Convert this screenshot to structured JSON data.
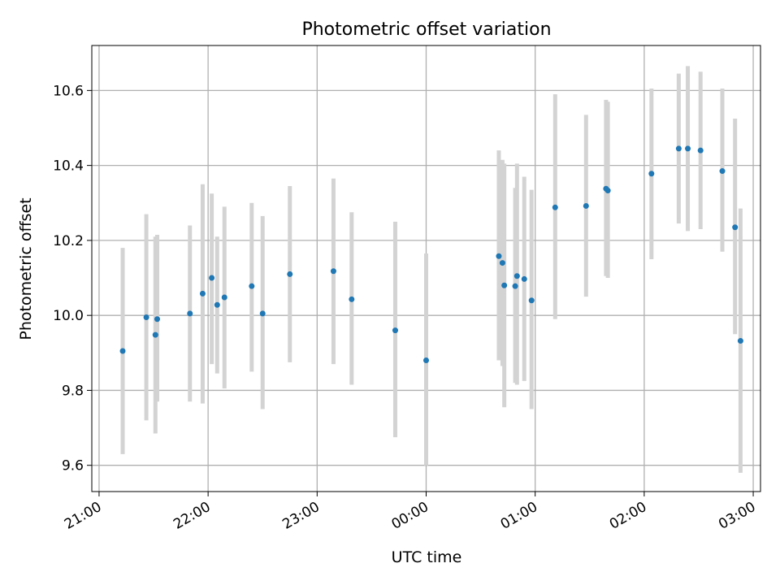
{
  "chart_data": {
    "type": "scatter",
    "title": "Photometric offset variation",
    "xlabel": "UTC time",
    "ylabel": "Photometric offset",
    "grid": true,
    "x_range_minutes_after_21_00": [
      -4,
      364
    ],
    "ylim": [
      9.53,
      10.72
    ],
    "x_tick_labels": [
      "21:00",
      "22:00",
      "23:00",
      "00:00",
      "01:00",
      "02:00",
      "03:00"
    ],
    "y_tick_values": [
      9.6,
      9.8,
      10.0,
      10.2,
      10.4,
      10.6
    ],
    "y_tick_labels": [
      "9.6",
      "9.8",
      "10.0",
      "10.2",
      "10.4",
      "10.6"
    ],
    "colors": {
      "point": "#1f77b4",
      "errorbar": "#d3d3d3",
      "grid": "#b0b0b0"
    },
    "points": [
      {
        "t": "21:13",
        "y": 9.905,
        "lo": 9.63,
        "hi": 10.18
      },
      {
        "t": "21:26",
        "y": 9.995,
        "lo": 9.72,
        "hi": 10.27
      },
      {
        "t": "21:31",
        "y": 9.948,
        "lo": 9.685,
        "hi": 10.21
      },
      {
        "t": "21:32",
        "y": 9.99,
        "lo": 9.77,
        "hi": 10.215
      },
      {
        "t": "21:50",
        "y": 10.005,
        "lo": 9.77,
        "hi": 10.24
      },
      {
        "t": "21:57",
        "y": 10.058,
        "lo": 9.765,
        "hi": 10.35
      },
      {
        "t": "22:02",
        "y": 10.1,
        "lo": 9.87,
        "hi": 10.325
      },
      {
        "t": "22:05",
        "y": 10.028,
        "lo": 9.845,
        "hi": 10.21
      },
      {
        "t": "22:09",
        "y": 10.048,
        "lo": 9.805,
        "hi": 10.29
      },
      {
        "t": "22:24",
        "y": 10.078,
        "lo": 9.85,
        "hi": 10.3
      },
      {
        "t": "22:30",
        "y": 10.005,
        "lo": 9.75,
        "hi": 10.265
      },
      {
        "t": "22:45",
        "y": 10.11,
        "lo": 9.875,
        "hi": 10.345
      },
      {
        "t": "23:09",
        "y": 10.118,
        "lo": 9.87,
        "hi": 10.365
      },
      {
        "t": "23:19",
        "y": 10.043,
        "lo": 9.815,
        "hi": 10.275
      },
      {
        "t": "23:43",
        "y": 9.96,
        "lo": 9.675,
        "hi": 10.25
      },
      {
        "t": "00:00",
        "y": 9.88,
        "lo": 9.6,
        "hi": 10.165
      },
      {
        "t": "00:40",
        "y": 10.158,
        "lo": 9.88,
        "hi": 10.44
      },
      {
        "t": "00:42",
        "y": 10.14,
        "lo": 9.865,
        "hi": 10.415
      },
      {
        "t": "00:43",
        "y": 10.08,
        "lo": 9.755,
        "hi": 10.405
      },
      {
        "t": "00:49",
        "y": 10.078,
        "lo": 9.82,
        "hi": 10.34
      },
      {
        "t": "00:50",
        "y": 10.105,
        "lo": 9.815,
        "hi": 10.405
      },
      {
        "t": "00:54",
        "y": 10.097,
        "lo": 9.825,
        "hi": 10.37
      },
      {
        "t": "00:58",
        "y": 10.04,
        "lo": 9.75,
        "hi": 10.335
      },
      {
        "t": "01:11",
        "y": 10.288,
        "lo": 9.99,
        "hi": 10.59
      },
      {
        "t": "01:28",
        "y": 10.292,
        "lo": 10.05,
        "hi": 10.535
      },
      {
        "t": "01:39",
        "y": 10.338,
        "lo": 10.105,
        "hi": 10.575
      },
      {
        "t": "01:40",
        "y": 10.333,
        "lo": 10.1,
        "hi": 10.57
      },
      {
        "t": "02:04",
        "y": 10.378,
        "lo": 10.15,
        "hi": 10.605
      },
      {
        "t": "02:19",
        "y": 10.445,
        "lo": 10.245,
        "hi": 10.645
      },
      {
        "t": "02:24",
        "y": 10.445,
        "lo": 10.225,
        "hi": 10.665
      },
      {
        "t": "02:31",
        "y": 10.44,
        "lo": 10.23,
        "hi": 10.65
      },
      {
        "t": "02:43",
        "y": 10.385,
        "lo": 10.17,
        "hi": 10.605
      },
      {
        "t": "02:50",
        "y": 10.235,
        "lo": 9.95,
        "hi": 10.525
      },
      {
        "t": "02:53",
        "y": 9.932,
        "lo": 9.58,
        "hi": 10.285
      }
    ]
  }
}
